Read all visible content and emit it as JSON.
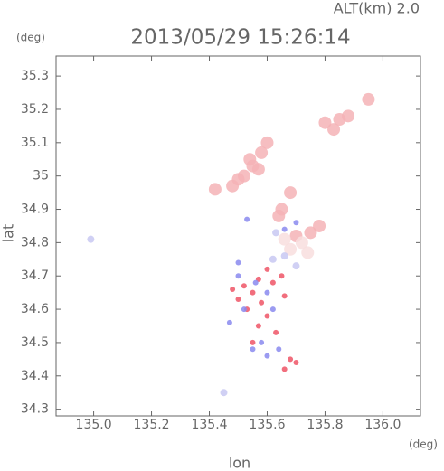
{
  "chart_data": {
    "type": "scatter",
    "title": "2013/05/29 15:26:14",
    "annotation": "ALT(km) 2.0",
    "y_unit": "(deg)",
    "x_unit": "(deg)",
    "x_label": "lon",
    "y_label": "lat",
    "xlim": [
      134.87,
      136.13
    ],
    "ylim": [
      34.28,
      35.36
    ],
    "xticks": [
      {
        "value": 135,
        "label": "135.0"
      },
      135.2,
      135.4,
      135.6,
      135.8,
      {
        "value": 136,
        "label": "136.0"
      }
    ],
    "yticks": [
      34.3,
      34.4,
      34.5,
      34.6,
      34.7,
      34.8,
      34.9,
      35.0,
      35.1,
      35.2,
      35.3
    ],
    "series": [
      {
        "color": "#f5b3b6",
        "x": [
          135.52,
          135.55,
          135.58,
          135.6,
          135.54,
          135.5,
          135.57,
          135.8,
          135.85,
          135.88,
          135.83,
          135.95,
          135.68,
          135.65,
          135.7,
          135.75,
          135.78,
          135.42,
          135.64,
          135.48
        ],
        "y": [
          35.0,
          35.03,
          35.07,
          35.1,
          35.05,
          34.99,
          35.02,
          35.16,
          35.17,
          35.18,
          35.14,
          35.23,
          34.95,
          34.9,
          34.82,
          34.83,
          34.85,
          34.96,
          34.88,
          34.97
        ]
      },
      {
        "color": "#f8dede",
        "x": [
          135.72,
          135.68,
          135.74,
          135.66
        ],
        "y": [
          34.8,
          34.78,
          34.77,
          34.81
        ]
      },
      {
        "color": "#ee5566",
        "x": [
          135.55,
          135.58,
          135.6,
          135.53,
          135.62,
          135.65,
          135.57,
          135.68,
          135.66,
          135.55,
          135.52,
          135.6,
          135.7,
          135.5,
          135.48,
          135.63,
          135.57,
          135.66
        ],
        "y": [
          34.65,
          34.62,
          34.58,
          34.6,
          34.68,
          34.7,
          34.55,
          34.45,
          34.42,
          34.5,
          34.67,
          34.72,
          34.44,
          34.63,
          34.66,
          34.53,
          34.69,
          34.64
        ]
      },
      {
        "color": "#8a8aee",
        "x": [
          135.5,
          135.52,
          135.56,
          135.6,
          135.62,
          135.55,
          135.58,
          135.6,
          135.64,
          135.5,
          135.66,
          135.7,
          135.47,
          135.53
        ],
        "y": [
          34.7,
          34.6,
          34.68,
          34.65,
          34.6,
          34.48,
          34.5,
          34.46,
          34.48,
          34.74,
          34.84,
          34.86,
          34.56,
          34.87
        ]
      },
      {
        "color": "#c8c8f2",
        "x": [
          134.99,
          135.63,
          135.66,
          135.7,
          135.45,
          135.62
        ],
        "y": [
          34.81,
          34.83,
          34.76,
          34.73,
          34.35,
          34.75
        ]
      }
    ]
  }
}
